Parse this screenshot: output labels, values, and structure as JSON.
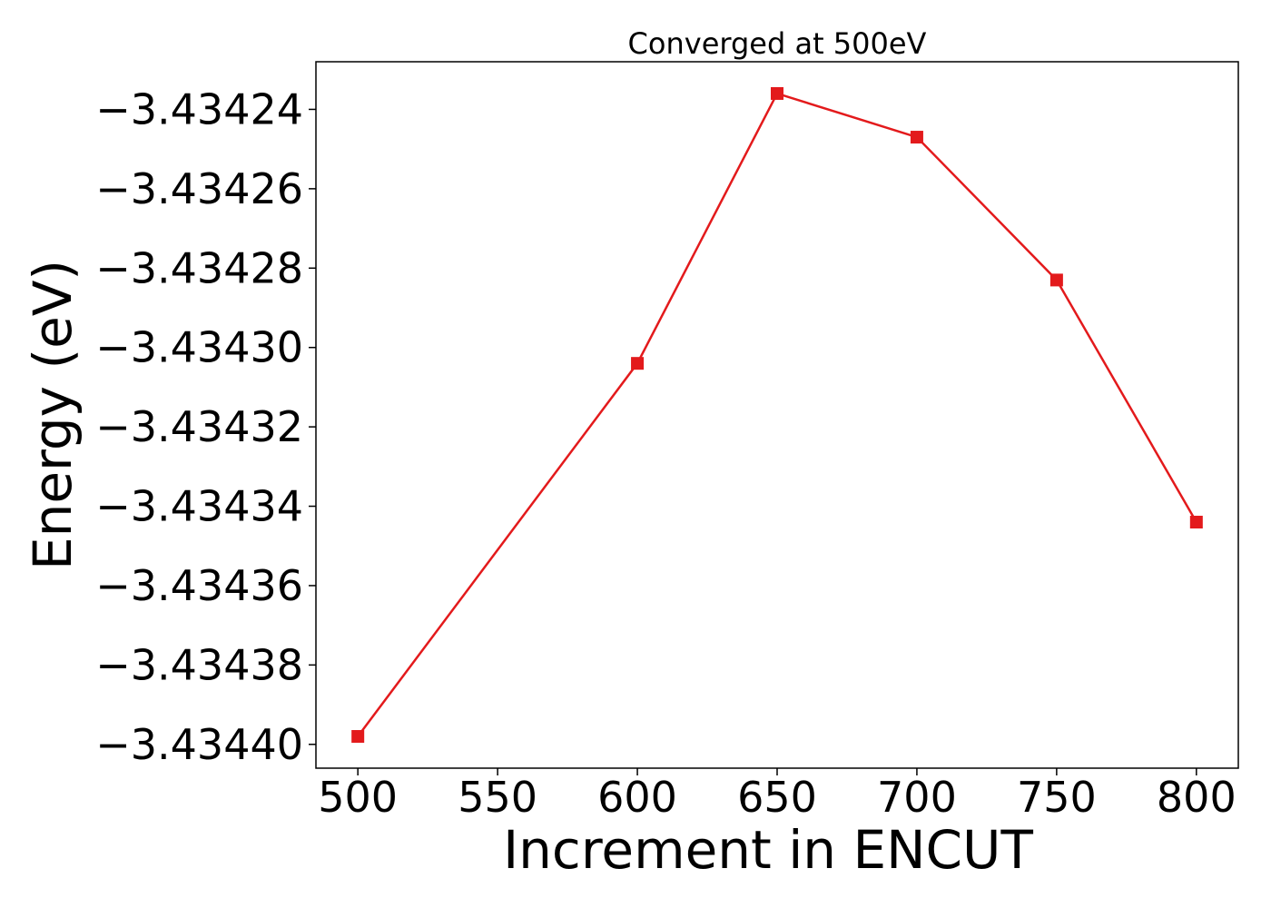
{
  "chart_data": {
    "type": "line",
    "title": "Converged at 500eV",
    "xlabel": "Increment in ENCUT",
    "ylabel": "Energy (eV)",
    "xlim": [
      485,
      815
    ],
    "ylim": [
      -3.434406,
      -3.434228
    ],
    "x_ticks": [
      500,
      550,
      600,
      650,
      700,
      750,
      800
    ],
    "x_tick_labels": [
      "500",
      "550",
      "600",
      "650",
      "700",
      "750",
      "800"
    ],
    "y_ticks": [
      -3.4344,
      -3.43438,
      -3.43436,
      -3.43434,
      -3.43432,
      -3.4343,
      -3.43428,
      -3.43426,
      -3.43424
    ],
    "y_tick_labels": [
      "−3.43440",
      "−3.43438",
      "−3.43436",
      "−3.43434",
      "−3.43432",
      "−3.43430",
      "−3.43428",
      "−3.43426",
      "−3.43424"
    ],
    "grid": false,
    "series": [
      {
        "color": "#e31a1c",
        "marker": "square",
        "x": [
          500,
          600,
          650,
          700,
          750,
          800
        ],
        "y": [
          -3.434398,
          -3.434304,
          -3.434236,
          -3.434247,
          -3.434283,
          -3.434344
        ]
      }
    ]
  }
}
